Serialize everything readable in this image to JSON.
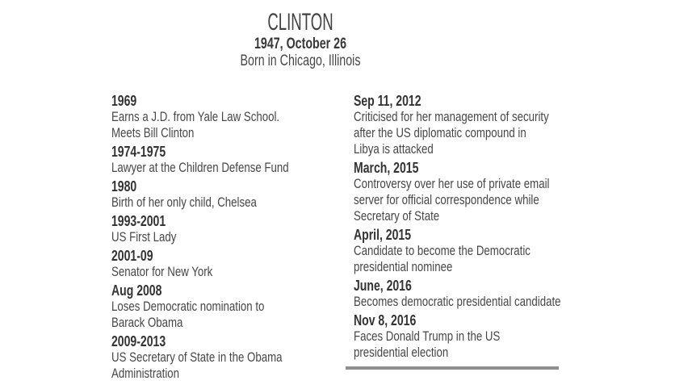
{
  "header": {
    "title": "CLINTON",
    "birth_date": "1947, October 26",
    "birth_place": "Born in Chicago, Illinois"
  },
  "timeline": {
    "left_column": [
      {
        "date": "1969",
        "description": "Earns a J.D. from Yale Law School.\nMeets Bill Clinton"
      },
      {
        "date": "1974-1975",
        "description": "Lawyer at the Children Defense Fund"
      },
      {
        "date": "1980",
        "description": "Birth of her only child, Chelsea"
      },
      {
        "date": "1993-2001",
        "description": "US First Lady"
      },
      {
        "date": "2001-09",
        "description": "Senator for New York"
      },
      {
        "date": "Aug 2008",
        "description": "Loses Democratic nomination to\nBarack Obama"
      },
      {
        "date": "2009-2013",
        "description": "US Secretary of State in the Obama\nAdministration"
      }
    ],
    "right_column": [
      {
        "date": "Sep 11, 2012",
        "description": "Criticised for her management of security\nafter the US diplomatic compound in\nLibya is attacked"
      },
      {
        "date": "March, 2015",
        "description": "Controversy over her use of private email\nserver for official correspondence while\nSecretary of State"
      },
      {
        "date": "April, 2015",
        "description": "Candidate to become the Democratic\npresidential nominee"
      },
      {
        "date": "June, 2016",
        "description": "Becomes democratic presidential candidate"
      },
      {
        "date": "Nov 8, 2016",
        "description": "Faces Donald Trump in the US\npresidential election"
      }
    ]
  },
  "colors": {
    "title_text": "#414141",
    "date_text": "#333333",
    "body_text": "#464646",
    "divider_gray": "#8d8f90",
    "background": "#ffffff"
  }
}
